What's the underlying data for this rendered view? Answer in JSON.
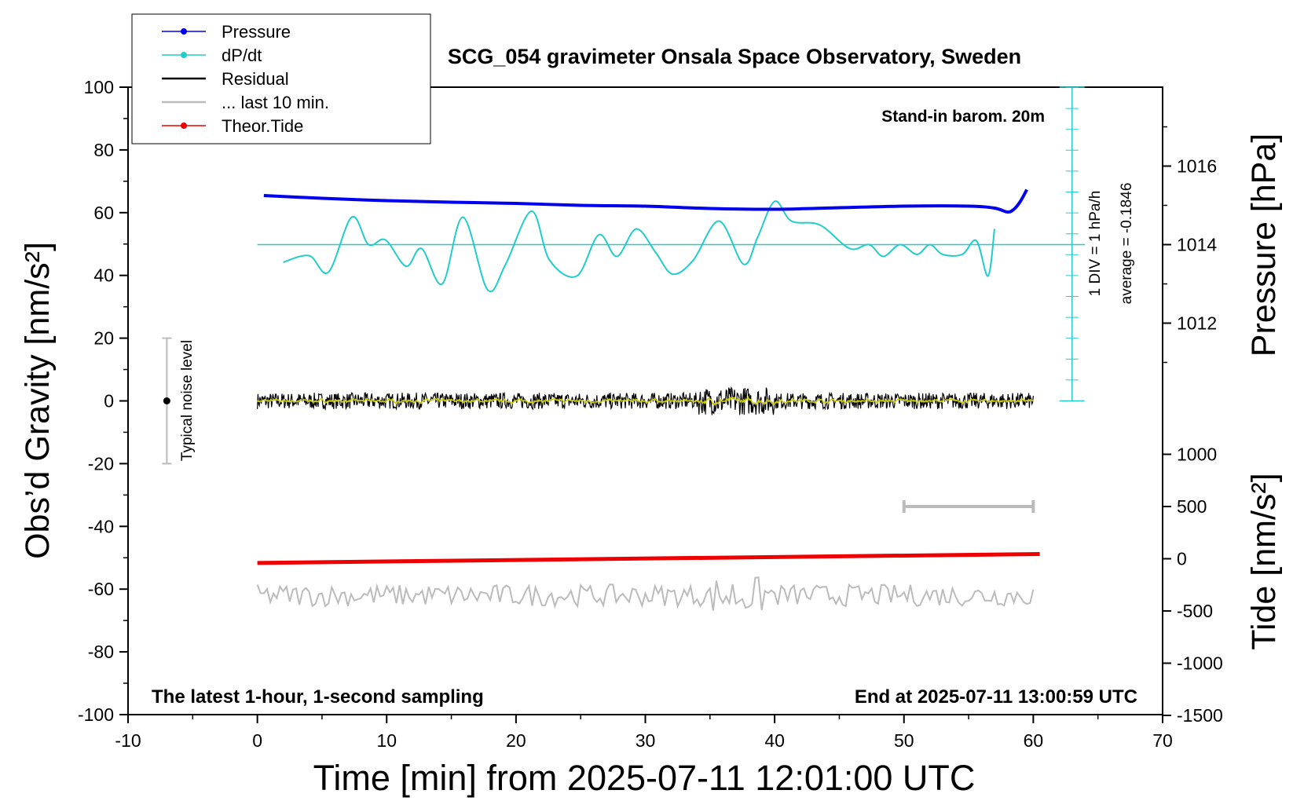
{
  "chart_data": {
    "type": "line",
    "title": "SCG_054 gravimeter Onsala Space Observatory, Sweden",
    "xlabel": "Time [min] from 2025-07-11 12:01:00 UTC",
    "ylabel_left": "Obs’d Gravity [nm/s²]",
    "ylabel_right_pressure": "Pressure [hPa]",
    "ylabel_right_tide": "Tide [nm/s²]",
    "xlim": [
      -10,
      70
    ],
    "ylim_left": [
      -100,
      100
    ],
    "xticks": [
      "-10",
      "0",
      "10",
      "20",
      "30",
      "40",
      "50",
      "60",
      "70"
    ],
    "yticks_left": [
      "100",
      "80",
      "60",
      "40",
      "20",
      "0",
      "-20",
      "-40",
      "-60",
      "-80",
      "-100"
    ],
    "yticks_pressure": [
      "1016",
      "1014",
      "1012"
    ],
    "yticks_tide": [
      "1000",
      "500",
      "0",
      "-500",
      "-1000",
      "-1500"
    ],
    "legend": {
      "placement": "top-left",
      "entries": [
        {
          "label": "Pressure",
          "color": "#0000ee",
          "marker": true
        },
        {
          "label": "dP/dt",
          "color": "#22cccc",
          "marker": true
        },
        {
          "label": "Residual",
          "color": "#000000",
          "marker": false
        },
        {
          "label": "... last 10 min.",
          "color": "#bbbbbb",
          "marker": false
        },
        {
          "label": "Theor.Tide",
          "color": "#ee0000",
          "marker": true
        }
      ]
    },
    "annotations": {
      "barometer": "Stand-in barom. 20m",
      "noise": "Typical noise level",
      "div": "1 DIV = 1 hPa/h",
      "average": "average = -0.1846",
      "bottom_left": "The latest 1-hour, 1-second sampling",
      "bottom_right": "End at 2025-07-11 13:00:59 UTC"
    },
    "series": [
      {
        "name": "Pressure",
        "color": "#0000ee",
        "unit": "hPa",
        "x": [
          0.5,
          5,
          10,
          15,
          20,
          25,
          30,
          35,
          40,
          45,
          50,
          55,
          57,
          58,
          58.5,
          59,
          59.5
        ],
        "y": [
          1015.25,
          1015.18,
          1015.12,
          1015.08,
          1015.05,
          1015.0,
          1014.98,
          1014.92,
          1014.9,
          1014.94,
          1014.98,
          1014.98,
          1014.93,
          1014.83,
          1014.9,
          1015.1,
          1015.4
        ]
      },
      {
        "name": "dP/dt",
        "color": "#22cccc",
        "x": [
          2,
          4,
          5.5,
          7.3,
          8.6,
          9.9,
          11.5,
          12.7,
          14.3,
          15.9,
          17.8,
          19.2,
          21.2,
          22.6,
          24.7,
          26.4,
          27.8,
          29.3,
          30.8,
          32.1,
          33.7,
          35.7,
          37.6,
          38.7,
          40.0,
          41.3,
          43.5,
          45.8,
          47.3,
          48.4,
          49.7,
          51.0,
          52.0,
          53.0,
          54.5,
          55.6,
          56.5,
          57.0
        ],
        "y": [
          1013.55,
          1013.72,
          1013.3,
          1014.7,
          1014.0,
          1014.12,
          1013.45,
          1013.9,
          1013.0,
          1014.7,
          1012.85,
          1013.5,
          1014.85,
          1013.6,
          1013.2,
          1014.25,
          1013.7,
          1014.4,
          1013.8,
          1013.25,
          1013.6,
          1014.6,
          1013.5,
          1014.2,
          1015.1,
          1014.6,
          1014.5,
          1013.9,
          1014.0,
          1013.7,
          1014.0,
          1013.75,
          1014.0,
          1013.75,
          1013.75,
          1014.1,
          1013.2,
          1014.4
        ]
      },
      {
        "name": "Residual",
        "color": "#000000",
        "x_range": [
          0,
          60
        ],
        "y_center": 0,
        "y_spread": [
          -7,
          11
        ]
      },
      {
        "name": "... last 10 min.",
        "color": "#bbbbbb",
        "x_range": [
          0,
          60
        ],
        "y_center": -62,
        "y_spread": [
          -70,
          -54
        ]
      },
      {
        "name": "Theor.Tide",
        "color": "#ee0000",
        "unit": "nm/s²",
        "x": [
          0,
          60.5
        ],
        "y": [
          -40,
          45
        ]
      }
    ],
    "dPdt_reference": {
      "axis_y": 1014,
      "ticks_x": 63
    },
    "noise_bar": {
      "x": -7,
      "y": [
        -20,
        20
      ]
    },
    "ten_min_bar": {
      "x": [
        50,
        60
      ],
      "tide_y": 500
    }
  }
}
